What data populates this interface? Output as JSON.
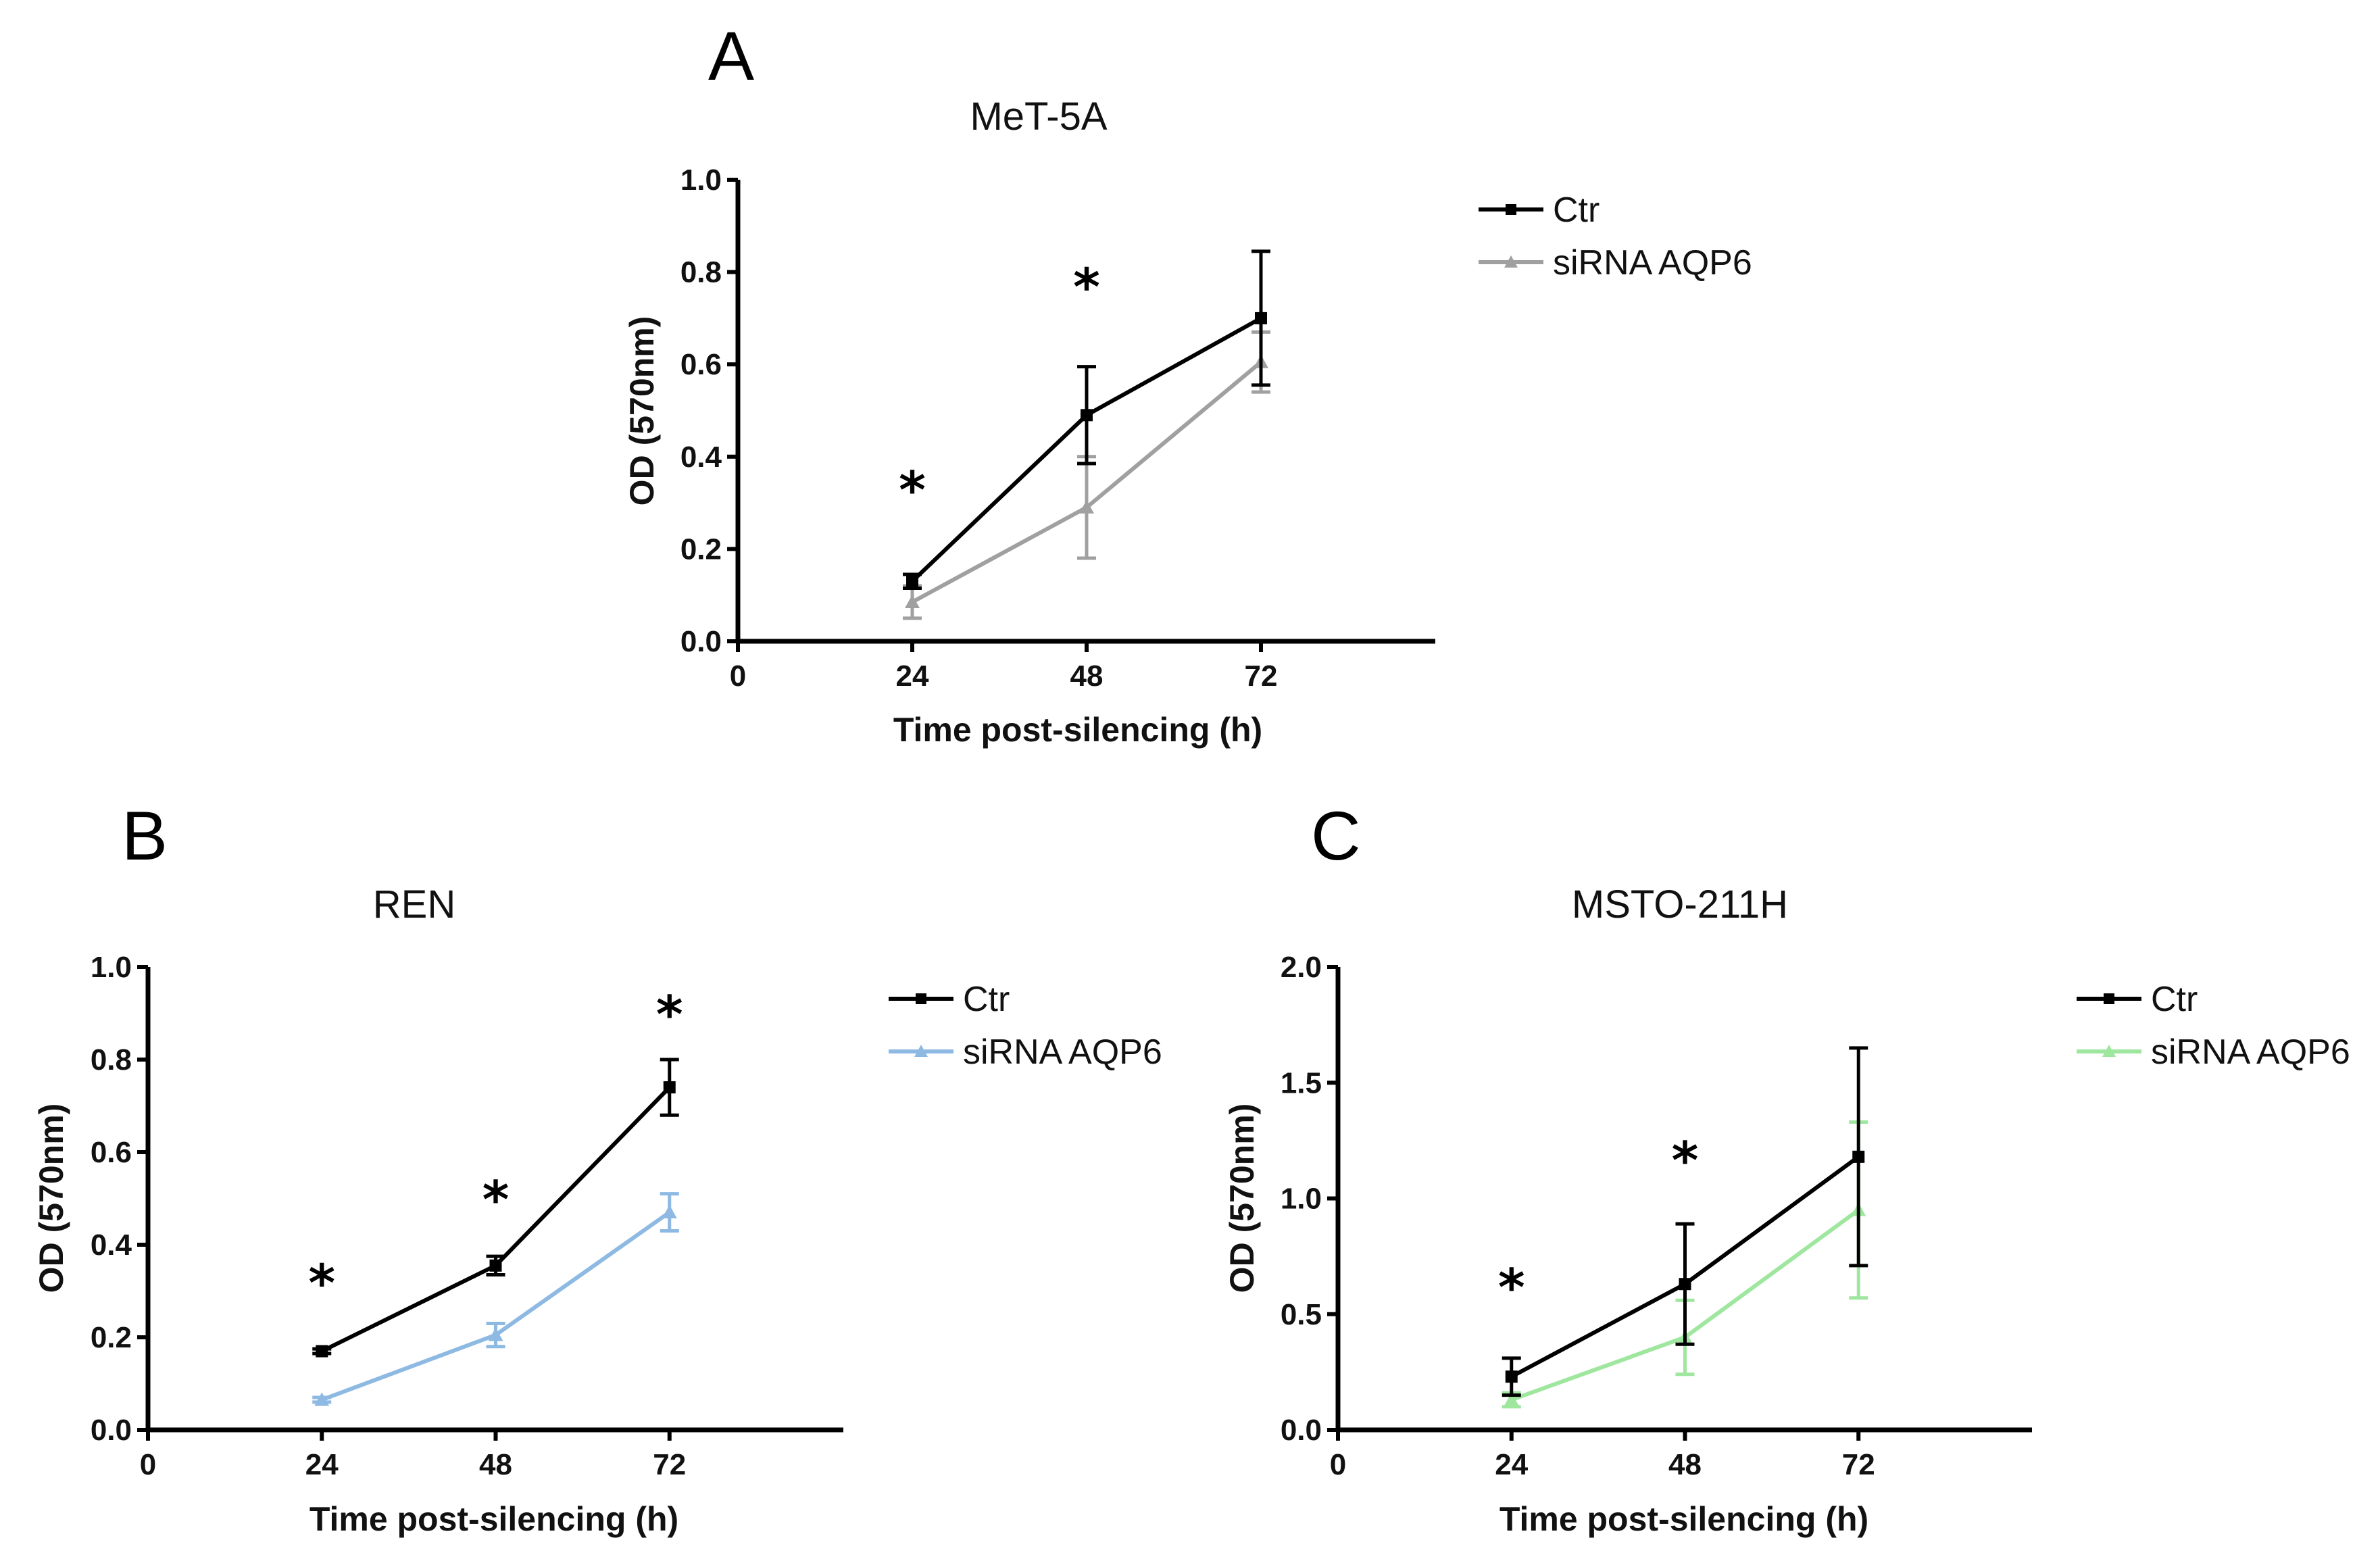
{
  "chart_data": [
    {
      "panel": "A",
      "type": "line",
      "title": "MeT-5A",
      "xlabel": "Time post-silencing (h)",
      "ylabel": "OD (570nm)",
      "xlim": [
        0,
        96
      ],
      "ylim": [
        0,
        1.0
      ],
      "x_ticks": [
        0,
        24,
        48,
        72
      ],
      "y_ticks": [
        "0.0",
        "0.2",
        "0.4",
        "0.6",
        "0.8",
        "1.0"
      ],
      "x": [
        24,
        48,
        72
      ],
      "series": [
        {
          "name": "Ctr",
          "color": "#000000",
          "marker": "square",
          "values": [
            0.13,
            0.49,
            0.7
          ],
          "errors": [
            0.015,
            0.105,
            0.145
          ]
        },
        {
          "name": "siRNA AQP6",
          "color": "#a0a0a0",
          "marker": "triangle",
          "values": [
            0.085,
            0.29,
            0.605
          ],
          "errors": [
            0.035,
            0.11,
            0.065
          ]
        }
      ],
      "annotations": [
        {
          "x": 24,
          "y": 0.33,
          "text": "*"
        },
        {
          "x": 48,
          "y": 0.77,
          "text": "*"
        }
      ],
      "legend_position": "top-right outside"
    },
    {
      "panel": "B",
      "type": "line",
      "title": "REN",
      "xlabel": "Time post-silencing (h)",
      "ylabel": "OD (570nm)",
      "xlim": [
        0,
        96
      ],
      "ylim": [
        0,
        1.0
      ],
      "x_ticks": [
        0,
        24,
        48,
        72
      ],
      "y_ticks": [
        "0.0",
        "0.2",
        "0.4",
        "0.6",
        "0.8",
        "1.0"
      ],
      "x": [
        24,
        48,
        72
      ],
      "series": [
        {
          "name": "Ctr",
          "color": "#000000",
          "marker": "square",
          "values": [
            0.17,
            0.355,
            0.74
          ],
          "errors": [
            0.005,
            0.02,
            0.06
          ]
        },
        {
          "name": "siRNA AQP6",
          "color": "#8db9e3",
          "marker": "triangle",
          "values": [
            0.065,
            0.205,
            0.47
          ],
          "errors": [
            0.005,
            0.025,
            0.04
          ]
        }
      ],
      "annotations": [
        {
          "x": 24,
          "y": 0.32,
          "text": "*"
        },
        {
          "x": 48,
          "y": 0.5,
          "text": "*"
        },
        {
          "x": 72,
          "y": 0.9,
          "text": "*"
        }
      ],
      "legend_position": "top-right outside"
    },
    {
      "panel": "C",
      "type": "line",
      "title": "MSTO-211H",
      "xlabel": "Time post-silencing (h)",
      "ylabel": "OD (570nm)",
      "xlim": [
        0,
        96
      ],
      "ylim": [
        0,
        2.0
      ],
      "x_ticks": [
        0,
        24,
        48,
        72
      ],
      "y_ticks": [
        "0.0",
        "0.5",
        "1.0",
        "1.5",
        "2.0"
      ],
      "x": [
        24,
        48,
        72
      ],
      "series": [
        {
          "name": "Ctr",
          "color": "#000000",
          "marker": "square",
          "values": [
            0.23,
            0.63,
            1.18
          ],
          "errors": [
            0.08,
            0.26,
            0.47
          ]
        },
        {
          "name": "siRNA AQP6",
          "color": "#9fe69f",
          "marker": "triangle",
          "values": [
            0.13,
            0.4,
            0.95
          ],
          "errors": [
            0.03,
            0.16,
            0.38
          ]
        }
      ],
      "annotations": [
        {
          "x": 24,
          "y": 0.62,
          "text": "*"
        },
        {
          "x": 48,
          "y": 1.17,
          "text": "*"
        }
      ],
      "legend_position": "top-right outside"
    }
  ]
}
